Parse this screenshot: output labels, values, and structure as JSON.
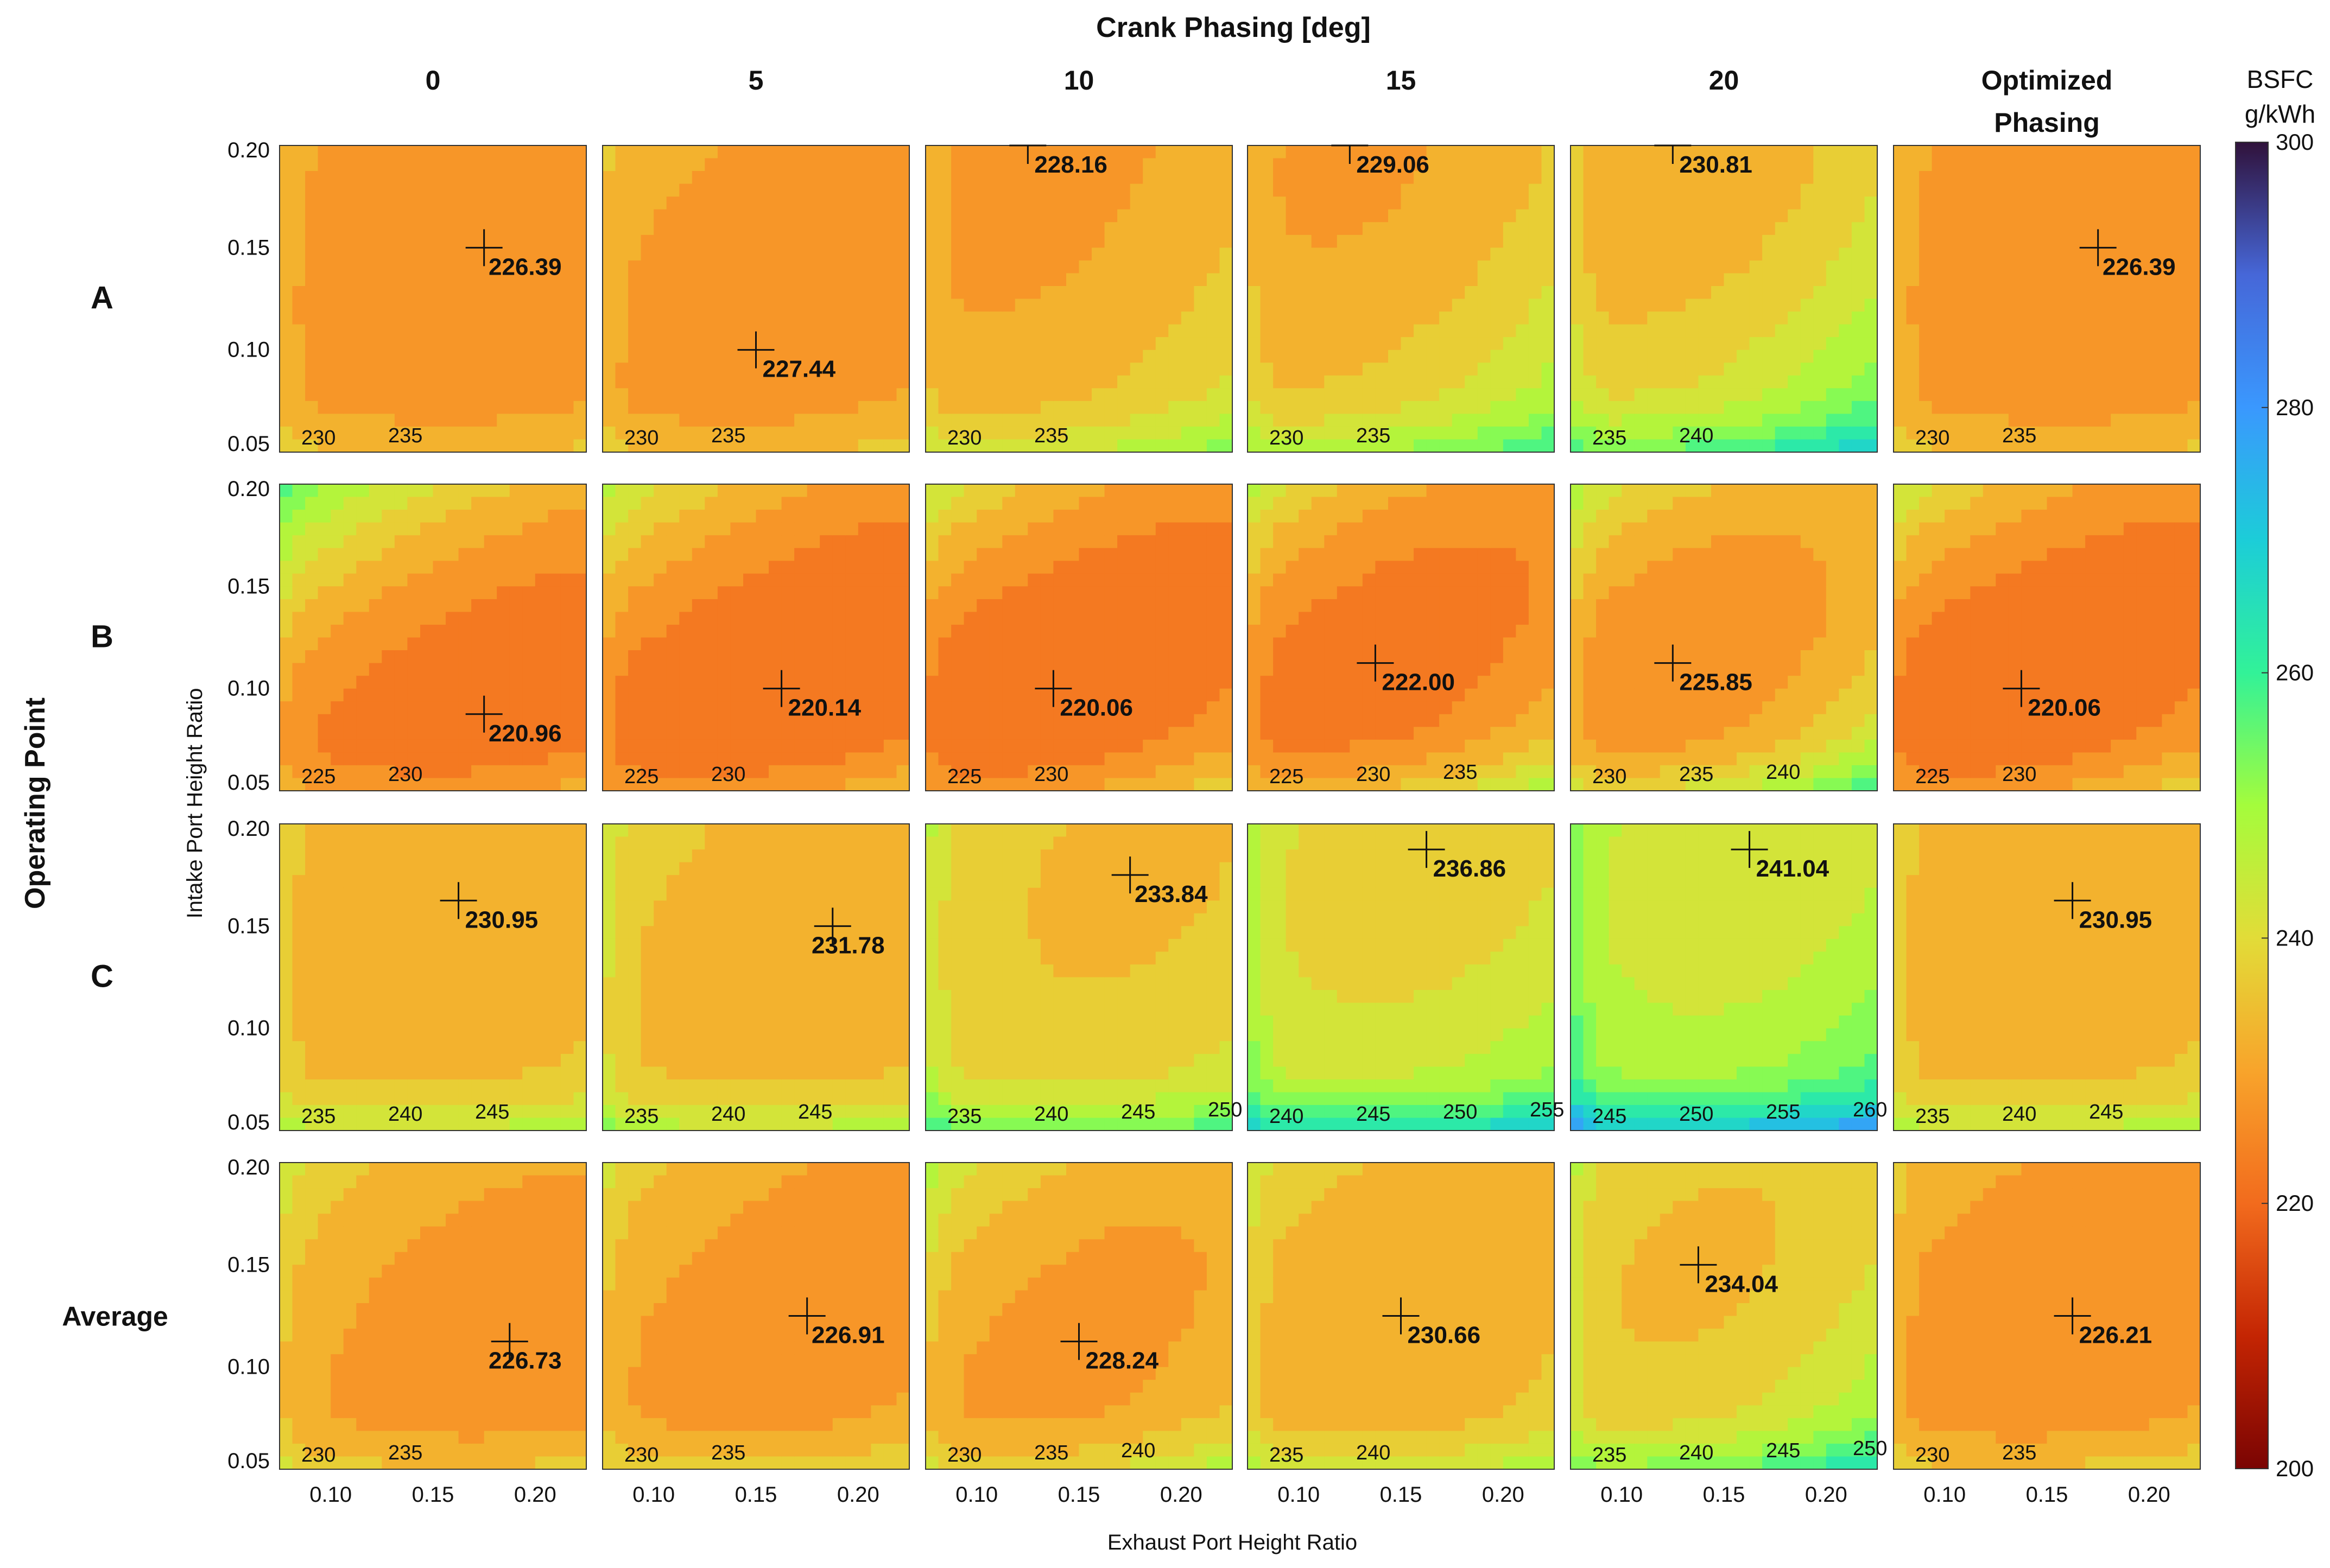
{
  "figure": {
    "top_title": "Crank Phasing [deg]",
    "left_title": "Operating Point",
    "x_axis_label": "Exhaust Port Height Ratio",
    "y_axis_label": "Intake Port Height Ratio",
    "colorbar_title_line1": "BSFC",
    "colorbar_title_line2": "g/kWh"
  },
  "chart_data": {
    "type": "heatmap",
    "subtype": "filled contour grid (4 rows x 6 columns)",
    "columns": [
      "0",
      "5",
      "10",
      "15",
      "20",
      "Optimized Phasing"
    ],
    "rows": [
      "A",
      "B",
      "C",
      "Average"
    ],
    "xlim": [
      0.075,
      0.225
    ],
    "ylim": [
      0.05,
      0.2
    ],
    "x_ticks": [
      0.1,
      0.15,
      0.2
    ],
    "x_tick_labels": [
      "0.10",
      "0.15",
      "0.20"
    ],
    "y_ticks": [
      0.05,
      0.1,
      0.15,
      0.2
    ],
    "y_tick_labels": [
      "0.05",
      "0.10",
      "0.15",
      "0.20"
    ],
    "colorbar": {
      "label": "BSFC g/kWh",
      "min": 200,
      "max": 300,
      "ticks": [
        200,
        220,
        240,
        260,
        280,
        300
      ],
      "colormap": "turbo (reversed: dark red low, dark blue high)"
    },
    "grid": false,
    "panels": [
      [
        {
          "opt": [
            0.175,
            0.15
          ],
          "label": "226.39",
          "contours": [
            230,
            235
          ]
        },
        {
          "opt": [
            0.15,
            0.1
          ],
          "label": "227.44",
          "contours": [
            230,
            235
          ]
        },
        {
          "opt": [
            0.125,
            0.2
          ],
          "label": "228.16",
          "contours": [
            230,
            235
          ]
        },
        {
          "opt": [
            0.125,
            0.2
          ],
          "label": "229.06",
          "contours": [
            230,
            235
          ]
        },
        {
          "opt": [
            0.125,
            0.2
          ],
          "label": "230.81",
          "contours": [
            235,
            240
          ]
        },
        {
          "opt": [
            0.175,
            0.15
          ],
          "label": "226.39",
          "contours": [
            230,
            235
          ]
        }
      ],
      [
        {
          "opt": [
            0.175,
            0.0875
          ],
          "label": "220.96",
          "contours": [
            225,
            230
          ]
        },
        {
          "opt": [
            0.1625,
            0.1
          ],
          "label": "220.14",
          "contours": [
            225,
            230
          ]
        },
        {
          "opt": [
            0.1375,
            0.1
          ],
          "label": "220.06",
          "contours": [
            225,
            230
          ]
        },
        {
          "opt": [
            0.1375,
            0.1125
          ],
          "label": "222.00",
          "contours": [
            225,
            230,
            235
          ]
        },
        {
          "opt": [
            0.125,
            0.1125
          ],
          "label": "225.85",
          "contours": [
            230,
            235,
            240
          ]
        },
        {
          "opt": [
            0.1375,
            0.1
          ],
          "label": "220.06",
          "contours": [
            225,
            230
          ]
        }
      ],
      [
        {
          "opt": [
            0.1625,
            0.1625
          ],
          "label": "230.95",
          "contours": [
            235,
            240,
            245
          ]
        },
        {
          "opt": [
            0.1875,
            0.15
          ],
          "label": "231.78",
          "contours": [
            235,
            240,
            245
          ]
        },
        {
          "opt": [
            0.175,
            0.175
          ],
          "label": "233.84",
          "contours": [
            235,
            240,
            245,
            250
          ]
        },
        {
          "opt": [
            0.1625,
            0.1875
          ],
          "label": "236.86",
          "contours": [
            240,
            245,
            250,
            255
          ]
        },
        {
          "opt": [
            0.1625,
            0.1875
          ],
          "label": "241.04",
          "contours": [
            245,
            250,
            255,
            260
          ]
        },
        {
          "opt": [
            0.1625,
            0.1625
          ],
          "label": "230.95",
          "contours": [
            235,
            240,
            245
          ]
        }
      ],
      [
        {
          "opt": [
            0.1875,
            0.1125
          ],
          "label": "226.73",
          "contours": [
            230,
            235
          ]
        },
        {
          "opt": [
            0.175,
            0.125
          ],
          "label": "226.91",
          "contours": [
            230,
            235
          ]
        },
        {
          "opt": [
            0.15,
            0.1125
          ],
          "label": "228.24",
          "contours": [
            230,
            235,
            240
          ]
        },
        {
          "opt": [
            0.15,
            0.125
          ],
          "label": "230.66",
          "contours": [
            235,
            240
          ]
        },
        {
          "opt": [
            0.1375,
            0.15
          ],
          "label": "234.04",
          "contours": [
            235,
            240,
            245,
            250
          ]
        },
        {
          "opt": [
            0.1625,
            0.125
          ],
          "label": "226.21",
          "contours": [
            230,
            235
          ]
        }
      ]
    ]
  }
}
